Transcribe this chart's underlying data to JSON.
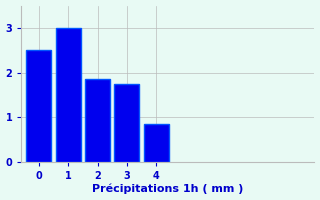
{
  "categories": [
    0,
    1,
    2,
    3,
    4
  ],
  "values": [
    2.5,
    3.0,
    1.85,
    1.75,
    0.85
  ],
  "bar_color": "#0000ee",
  "bar_edge_color": "#0055ff",
  "background_color": "#e8faf4",
  "xlabel": "Précipitations 1h ( mm )",
  "ylabel": "",
  "ylim": [
    0,
    3.5
  ],
  "yticks": [
    0,
    1,
    2,
    3
  ],
  "xlim": [
    -0.6,
    9.4
  ],
  "xticks": [
    0,
    1,
    2,
    3,
    4
  ],
  "grid_color": "#bbbbbb",
  "xlabel_color": "#0000cc",
  "tick_color": "#0000cc",
  "bar_width": 0.85
}
